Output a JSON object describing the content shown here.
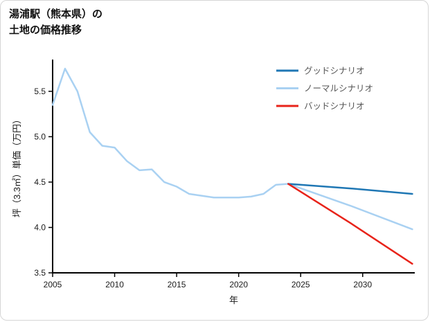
{
  "page": {
    "title_lines": [
      "湯浦駅（熊本県）の",
      "土地の価格推移"
    ]
  },
  "chart_data": {
    "type": "line",
    "title": "湯浦駅（熊本県）の土地の価格推移",
    "xlabel": "年",
    "ylabel": "坪（3.3㎡）単価（万円）",
    "xlim": [
      2005,
      2034.2
    ],
    "ylim": [
      3.5,
      5.85
    ],
    "x_ticks": [
      2005,
      2010,
      2015,
      2020,
      2025,
      2030
    ],
    "y_ticks": [
      3.5,
      4.0,
      4.5,
      5.0,
      5.5
    ],
    "grid": false,
    "legend_position": "upper right",
    "legend": [
      "グッドシナリオ",
      "ノーマルシナリオ",
      "バッドシナリオ"
    ],
    "series": [
      {
        "key": "normal",
        "name": "ノーマルシナリオ",
        "color": "#a9d1f2",
        "x": [
          2005,
          2006,
          2007,
          2008,
          2009,
          2010,
          2011,
          2012,
          2013,
          2014,
          2015,
          2016,
          2017,
          2018,
          2019,
          2020,
          2021,
          2022,
          2023,
          2024,
          2029,
          2034
        ],
        "values": [
          5.35,
          5.75,
          5.5,
          5.05,
          4.9,
          4.88,
          4.73,
          4.63,
          4.64,
          4.5,
          4.45,
          4.37,
          4.35,
          4.33,
          4.33,
          4.33,
          4.34,
          4.37,
          4.47,
          4.48,
          4.24,
          3.98
        ]
      },
      {
        "key": "good",
        "name": "グッドシナリオ",
        "color": "#1f77b4",
        "x": [
          2024,
          2029,
          2034
        ],
        "values": [
          4.48,
          4.43,
          4.37
        ]
      },
      {
        "key": "bad",
        "name": "バッドシナリオ",
        "color": "#e8231a",
        "x": [
          2024,
          2029,
          2034
        ],
        "values": [
          4.48,
          4.05,
          3.6
        ]
      }
    ]
  }
}
